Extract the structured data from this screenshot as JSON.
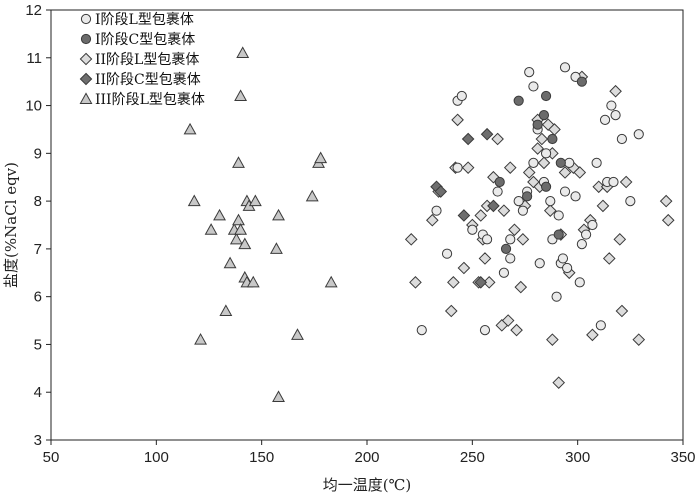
{
  "chart_data": {
    "type": "scatter",
    "xlabel": "均一温度(℃)",
    "ylabel": "盐度(%NaCl eqv)",
    "xlim": [
      50,
      350
    ],
    "ylim": [
      3,
      12
    ],
    "x_ticks": [
      "50",
      "100",
      "150",
      "200",
      "250",
      "300",
      "350"
    ],
    "y_ticks": [
      "3",
      "4",
      "5",
      "6",
      "7",
      "8",
      "9",
      "10",
      "11",
      "12"
    ],
    "grid": false,
    "legend_position": "top-left",
    "series": [
      {
        "name": "I阶段L型包裹体",
        "marker": "circle",
        "fill": "#eaeaea",
        "points": [
          [
            226,
            5.3
          ],
          [
            233,
            7.8
          ],
          [
            238,
            6.9
          ],
          [
            243,
            10.1
          ],
          [
            245,
            10.2
          ],
          [
            243,
            8.7
          ],
          [
            250,
            7.4
          ],
          [
            255,
            7.3
          ],
          [
            256,
            5.3
          ],
          [
            257,
            7.2
          ],
          [
            262,
            8.2
          ],
          [
            265,
            6.5
          ],
          [
            268,
            7.2
          ],
          [
            268,
            6.8
          ],
          [
            272,
            8.0
          ],
          [
            274,
            7.8
          ],
          [
            276,
            8.2
          ],
          [
            277,
            10.7
          ],
          [
            279,
            10.4
          ],
          [
            279,
            8.8
          ],
          [
            281,
            9.5
          ],
          [
            282,
            6.7
          ],
          [
            284,
            8.4
          ],
          [
            285,
            9.0
          ],
          [
            287,
            8.0
          ],
          [
            288,
            7.2
          ],
          [
            290,
            6.0
          ],
          [
            291,
            7.7
          ],
          [
            292,
            6.7
          ],
          [
            293,
            6.8
          ],
          [
            294,
            10.8
          ],
          [
            294,
            8.2
          ],
          [
            295,
            6.6
          ],
          [
            296,
            8.8
          ],
          [
            299,
            10.6
          ],
          [
            299,
            8.1
          ],
          [
            301,
            6.3
          ],
          [
            302,
            7.1
          ],
          [
            304,
            7.3
          ],
          [
            307,
            7.5
          ],
          [
            309,
            8.8
          ],
          [
            311,
            5.4
          ],
          [
            313,
            9.7
          ],
          [
            314,
            8.4
          ],
          [
            316,
            10.0
          ],
          [
            317,
            8.4
          ],
          [
            318,
            9.8
          ],
          [
            321,
            9.3
          ],
          [
            325,
            8.0
          ],
          [
            329,
            9.4
          ]
        ]
      },
      {
        "name": "I阶段C型包裹体",
        "marker": "circle",
        "fill": "#6b6b6b",
        "points": [
          [
            263,
            8.4
          ],
          [
            266,
            7.0
          ],
          [
            272,
            10.1
          ],
          [
            276,
            8.1
          ],
          [
            281,
            9.6
          ],
          [
            284,
            9.8
          ],
          [
            285,
            10.2
          ],
          [
            285,
            8.3
          ],
          [
            288,
            9.3
          ],
          [
            291,
            7.3
          ],
          [
            292,
            8.8
          ],
          [
            302,
            10.5
          ]
        ]
      },
      {
        "name": "II阶段L型包裹体",
        "marker": "diamond",
        "fill": "#dcdcdc",
        "points": [
          [
            221,
            7.2
          ],
          [
            223,
            6.3
          ],
          [
            231,
            7.6
          ],
          [
            234,
            8.2
          ],
          [
            240,
            5.7
          ],
          [
            241,
            6.3
          ],
          [
            242,
            8.7
          ],
          [
            243,
            9.7
          ],
          [
            246,
            6.6
          ],
          [
            248,
            8.7
          ],
          [
            250,
            7.5
          ],
          [
            253,
            6.3
          ],
          [
            254,
            7.7
          ],
          [
            255,
            7.2
          ],
          [
            256,
            6.8
          ],
          [
            257,
            7.9
          ],
          [
            258,
            6.3
          ],
          [
            260,
            8.5
          ],
          [
            262,
            9.3
          ],
          [
            264,
            5.4
          ],
          [
            265,
            7.8
          ],
          [
            267,
            5.5
          ],
          [
            268,
            8.7
          ],
          [
            270,
            7.4
          ],
          [
            271,
            5.3
          ],
          [
            273,
            6.2
          ],
          [
            274,
            7.2
          ],
          [
            275,
            7.9
          ],
          [
            277,
            8.6
          ],
          [
            279,
            8.4
          ],
          [
            281,
            9.7
          ],
          [
            281,
            9.1
          ],
          [
            282,
            8.3
          ],
          [
            283,
            9.3
          ],
          [
            284,
            8.8
          ],
          [
            286,
            9.6
          ],
          [
            287,
            7.8
          ],
          [
            288,
            9.0
          ],
          [
            288,
            5.1
          ],
          [
            289,
            9.5
          ],
          [
            291,
            4.2
          ],
          [
            292,
            7.3
          ],
          [
            294,
            8.6
          ],
          [
            296,
            6.5
          ],
          [
            298,
            8.7
          ],
          [
            301,
            8.6
          ],
          [
            302,
            10.6
          ],
          [
            303,
            7.4
          ],
          [
            306,
            7.6
          ],
          [
            307,
            5.2
          ],
          [
            310,
            8.3
          ],
          [
            312,
            7.9
          ],
          [
            314,
            8.3
          ],
          [
            315,
            6.8
          ],
          [
            318,
            10.3
          ],
          [
            320,
            7.2
          ],
          [
            321,
            5.7
          ],
          [
            323,
            8.4
          ],
          [
            329,
            5.1
          ],
          [
            342,
            8.0
          ],
          [
            343,
            7.6
          ]
        ]
      },
      {
        "name": "II阶段C型包裹体",
        "marker": "diamond",
        "fill": "#6e6e6e",
        "points": [
          [
            233,
            8.3
          ],
          [
            235,
            8.2
          ],
          [
            246,
            7.7
          ],
          [
            248,
            9.3
          ],
          [
            254,
            6.3
          ],
          [
            257,
            9.4
          ],
          [
            260,
            7.9
          ]
        ]
      },
      {
        "name": "III阶段L型包裹体",
        "marker": "triangle",
        "fill": "#c8c8c8",
        "points": [
          [
            116,
            9.5
          ],
          [
            118,
            8.0
          ],
          [
            121,
            5.1
          ],
          [
            126,
            7.4
          ],
          [
            130,
            7.7
          ],
          [
            133,
            5.7
          ],
          [
            135,
            6.7
          ],
          [
            137,
            7.4
          ],
          [
            138,
            7.2
          ],
          [
            139,
            7.6
          ],
          [
            139,
            8.8
          ],
          [
            140,
            7.4
          ],
          [
            140,
            10.2
          ],
          [
            141,
            11.1
          ],
          [
            142,
            6.4
          ],
          [
            142,
            7.1
          ],
          [
            143,
            8.0
          ],
          [
            143,
            6.3
          ],
          [
            144,
            7.9
          ],
          [
            146,
            6.3
          ],
          [
            147,
            8.0
          ],
          [
            157,
            7.0
          ],
          [
            158,
            7.7
          ],
          [
            158,
            3.9
          ],
          [
            167,
            5.2
          ],
          [
            174,
            8.1
          ],
          [
            177,
            8.8
          ],
          [
            178,
            8.9
          ],
          [
            183,
            6.3
          ]
        ]
      }
    ]
  }
}
